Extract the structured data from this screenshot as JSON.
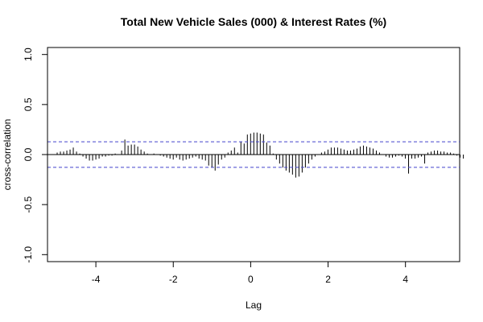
{
  "chart_data": {
    "type": "bar",
    "subtype": "cross-correlation",
    "title": "Total New Vehicle Sales (000) & Interest Rates (%)",
    "xlabel": "Lag",
    "ylabel": "cross-correlation",
    "xlim": [
      -5.25,
      5.4
    ],
    "ylim": [
      -1.07,
      1.07
    ],
    "x_ticks": [
      -4,
      -2,
      0,
      2,
      4
    ],
    "x_tick_labels": [
      "-4",
      "-2",
      "0",
      "2",
      "4"
    ],
    "y_ticks": [
      -1.0,
      -0.5,
      0.0,
      0.5,
      1.0
    ],
    "y_tick_labels": [
      "-1.0",
      "-0.5",
      "0.0",
      "0.5",
      "1.0"
    ],
    "grid": false,
    "confidence_bound": 0.128,
    "colors": {
      "bars": "#000000",
      "zero_line": "#000000",
      "confidence": "#4444cc"
    },
    "series": {
      "lag_step": 0.0833,
      "lag_start": -5.0,
      "values": [
        0.02,
        0.03,
        0.03,
        0.04,
        0.05,
        0.07,
        0.03,
        0.01,
        -0.02,
        -0.04,
        -0.06,
        -0.06,
        -0.05,
        -0.04,
        -0.02,
        -0.02,
        -0.01,
        -0.01,
        0.01,
        0.0,
        0.04,
        0.15,
        0.09,
        0.1,
        0.1,
        0.08,
        0.05,
        0.03,
        0.01,
        0.0,
        0.01,
        0.0,
        -0.01,
        -0.02,
        -0.03,
        -0.04,
        -0.05,
        -0.03,
        -0.05,
        -0.06,
        -0.05,
        -0.04,
        -0.03,
        -0.02,
        -0.04,
        -0.05,
        -0.06,
        -0.11,
        -0.13,
        -0.16,
        -0.1,
        -0.05,
        -0.03,
        0.02,
        0.04,
        0.07,
        0.02,
        0.13,
        0.11,
        0.2,
        0.21,
        0.22,
        0.22,
        0.21,
        0.2,
        0.12,
        0.09,
        0.01,
        -0.05,
        -0.09,
        -0.13,
        -0.16,
        -0.18,
        -0.2,
        -0.23,
        -0.22,
        -0.18,
        -0.13,
        -0.09,
        -0.05,
        -0.02,
        0.0,
        0.02,
        0.03,
        0.05,
        0.07,
        0.07,
        0.07,
        0.06,
        0.05,
        0.04,
        0.04,
        0.05,
        0.06,
        0.08,
        0.09,
        0.08,
        0.07,
        0.06,
        0.04,
        0.02,
        0.0,
        -0.02,
        -0.03,
        -0.03,
        -0.02,
        -0.01,
        -0.02,
        -0.04,
        -0.19,
        -0.04,
        -0.04,
        -0.03,
        -0.02,
        -0.09,
        0.02,
        0.03,
        0.04,
        0.04,
        0.03,
        0.03,
        0.02,
        0.02,
        0.01,
        -0.01,
        -0.03,
        -0.04
      ]
    }
  }
}
